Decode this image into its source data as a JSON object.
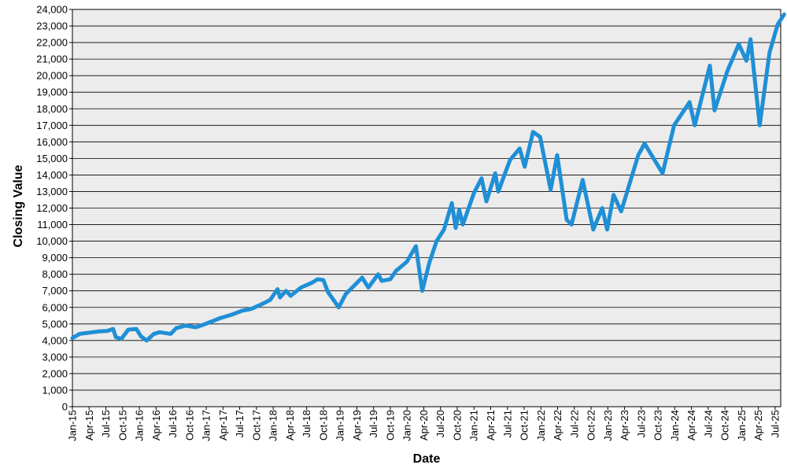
{
  "chart_data": {
    "type": "line",
    "title": "",
    "xlabel": "Date",
    "ylabel": "Closing Value",
    "grid": true,
    "legend": "none",
    "colors": {
      "line": "#1f8fd6",
      "plot_bg": "#ececec",
      "grid": "#000000"
    },
    "ylim": [
      0,
      24000
    ],
    "xlim": [
      "2015-01",
      "2025-08"
    ],
    "y_ticks": [
      {
        "value": 0,
        "label": "0"
      },
      {
        "value": 1000,
        "label": "1,000"
      },
      {
        "value": 2000,
        "label": "2,000"
      },
      {
        "value": 3000,
        "label": "3,000"
      },
      {
        "value": 4000,
        "label": "4,000"
      },
      {
        "value": 5000,
        "label": "5,000"
      },
      {
        "value": 6000,
        "label": "6,000"
      },
      {
        "value": 7000,
        "label": "7,000"
      },
      {
        "value": 8000,
        "label": "8,000"
      },
      {
        "value": 9000,
        "label": "9,000"
      },
      {
        "value": 10000,
        "label": "10,000"
      },
      {
        "value": 11000,
        "label": "11,000"
      },
      {
        "value": 12000,
        "label": "12,000"
      },
      {
        "value": 13000,
        "label": "13,000"
      },
      {
        "value": 14000,
        "label": "14,000"
      },
      {
        "value": 15000,
        "label": "15,000"
      },
      {
        "value": 16000,
        "label": "16,000"
      },
      {
        "value": 17000,
        "label": "17,000"
      },
      {
        "value": 18000,
        "label": "18,000"
      },
      {
        "value": 19000,
        "label": "19,000"
      },
      {
        "value": 20000,
        "label": "20,000"
      },
      {
        "value": 21000,
        "label": "21,000"
      },
      {
        "value": 22000,
        "label": "22,000"
      },
      {
        "value": 23000,
        "label": "23,000"
      },
      {
        "value": 24000,
        "label": "24,000"
      }
    ],
    "x_ticks": [
      {
        "date": "2015-01",
        "label": "Jan-15"
      },
      {
        "date": "2015-04",
        "label": "Apr-15"
      },
      {
        "date": "2015-07",
        "label": "Jul-15"
      },
      {
        "date": "2015-10",
        "label": "Oct-15"
      },
      {
        "date": "2016-01",
        "label": "Jan-16"
      },
      {
        "date": "2016-04",
        "label": "Apr-16"
      },
      {
        "date": "2016-07",
        "label": "Jul-16"
      },
      {
        "date": "2016-10",
        "label": "Oct-16"
      },
      {
        "date": "2017-01",
        "label": "Jan-17"
      },
      {
        "date": "2017-04",
        "label": "Apr-17"
      },
      {
        "date": "2017-07",
        "label": "Jul-17"
      },
      {
        "date": "2017-10",
        "label": "Oct-17"
      },
      {
        "date": "2018-01",
        "label": "Jan-18"
      },
      {
        "date": "2018-04",
        "label": "Apr-18"
      },
      {
        "date": "2018-07",
        "label": "Jul-18"
      },
      {
        "date": "2018-10",
        "label": "Oct-18"
      },
      {
        "date": "2019-01",
        "label": "Jan-19"
      },
      {
        "date": "2019-04",
        "label": "Apr-19"
      },
      {
        "date": "2019-07",
        "label": "Jul-19"
      },
      {
        "date": "2019-10",
        "label": "Oct-19"
      },
      {
        "date": "2020-01",
        "label": "Jan-20"
      },
      {
        "date": "2020-04",
        "label": "Apr-20"
      },
      {
        "date": "2020-07",
        "label": "Jul-20"
      },
      {
        "date": "2020-10",
        "label": "Oct-20"
      },
      {
        "date": "2021-01",
        "label": "Jan-21"
      },
      {
        "date": "2021-04",
        "label": "Apr-21"
      },
      {
        "date": "2021-07",
        "label": "Jul-21"
      },
      {
        "date": "2021-10",
        "label": "Oct-21"
      },
      {
        "date": "2022-01",
        "label": "Jan-22"
      },
      {
        "date": "2022-04",
        "label": "Apr-22"
      },
      {
        "date": "2022-07",
        "label": "Jul-22"
      },
      {
        "date": "2022-10",
        "label": "Oct-22"
      },
      {
        "date": "2023-01",
        "label": "Jan-23"
      },
      {
        "date": "2023-04",
        "label": "Apr-23"
      },
      {
        "date": "2023-07",
        "label": "Jul-23"
      },
      {
        "date": "2023-10",
        "label": "Oct-23"
      },
      {
        "date": "2024-01",
        "label": "Jan-24"
      },
      {
        "date": "2024-04",
        "label": "Apr-24"
      },
      {
        "date": "2024-07",
        "label": "Jul-24"
      },
      {
        "date": "2024-10",
        "label": "Oct-24"
      },
      {
        "date": "2025-01",
        "label": "Jan-25"
      },
      {
        "date": "2025-04",
        "label": "Apr-25"
      },
      {
        "date": "2025-07",
        "label": "Jul-25"
      }
    ],
    "series": [
      {
        "points": [
          [
            "2015-01-01",
            4150
          ],
          [
            "2015-02-10",
            4400
          ],
          [
            "2015-03-15",
            4450
          ],
          [
            "2015-04-20",
            4500
          ],
          [
            "2015-05-25",
            4550
          ],
          [
            "2015-07-10",
            4580
          ],
          [
            "2015-08-10",
            4700
          ],
          [
            "2015-08-25",
            4200
          ],
          [
            "2015-09-25",
            4100
          ],
          [
            "2015-11-01",
            4650
          ],
          [
            "2015-12-15",
            4700
          ],
          [
            "2016-01-10",
            4250
          ],
          [
            "2016-02-10",
            4000
          ],
          [
            "2016-03-20",
            4400
          ],
          [
            "2016-04-20",
            4500
          ],
          [
            "2016-06-20",
            4400
          ],
          [
            "2016-07-20",
            4750
          ],
          [
            "2016-09-10",
            4900
          ],
          [
            "2016-11-05",
            4800
          ],
          [
            "2016-12-15",
            4950
          ],
          [
            "2017-02-01",
            5150
          ],
          [
            "2017-03-15",
            5350
          ],
          [
            "2017-05-15",
            5550
          ],
          [
            "2017-07-15",
            5800
          ],
          [
            "2017-09-01",
            5900
          ],
          [
            "2017-11-01",
            6200
          ],
          [
            "2017-12-15",
            6450
          ],
          [
            "2018-01-25",
            7100
          ],
          [
            "2018-02-08",
            6600
          ],
          [
            "2018-03-10",
            7000
          ],
          [
            "2018-04-05",
            6700
          ],
          [
            "2018-06-01",
            7200
          ],
          [
            "2018-08-01",
            7500
          ],
          [
            "2018-08-30",
            7700
          ],
          [
            "2018-10-01",
            7650
          ],
          [
            "2018-10-25",
            6950
          ],
          [
            "2018-12-24",
            6000
          ],
          [
            "2019-02-01",
            6800
          ],
          [
            "2019-04-30",
            7800
          ],
          [
            "2019-06-03",
            7200
          ],
          [
            "2019-07-26",
            8000
          ],
          [
            "2019-08-15",
            7600
          ],
          [
            "2019-10-01",
            7700
          ],
          [
            "2019-11-01",
            8200
          ],
          [
            "2019-12-30",
            8750
          ],
          [
            "2020-02-19",
            9700
          ],
          [
            "2020-03-23",
            7000
          ],
          [
            "2020-05-01",
            8700
          ],
          [
            "2020-06-10",
            10000
          ],
          [
            "2020-07-20",
            10700
          ],
          [
            "2020-09-02",
            12300
          ],
          [
            "2020-09-23",
            10800
          ],
          [
            "2020-10-12",
            11900
          ],
          [
            "2020-11-01",
            11000
          ],
          [
            "2020-12-31",
            12900
          ],
          [
            "2021-02-12",
            13800
          ],
          [
            "2021-03-08",
            12400
          ],
          [
            "2021-04-26",
            14100
          ],
          [
            "2021-05-12",
            13000
          ],
          [
            "2021-07-15",
            14900
          ],
          [
            "2021-09-07",
            15600
          ],
          [
            "2021-10-04",
            14500
          ],
          [
            "2021-11-19",
            16600
          ],
          [
            "2021-12-27",
            16300
          ],
          [
            "2022-02-24",
            13100
          ],
          [
            "2022-03-29",
            15200
          ],
          [
            "2022-05-20",
            11300
          ],
          [
            "2022-06-16",
            11000
          ],
          [
            "2022-08-16",
            13700
          ],
          [
            "2022-10-13",
            10700
          ],
          [
            "2022-12-01",
            12000
          ],
          [
            "2022-12-28",
            10700
          ],
          [
            "2023-02-02",
            12800
          ],
          [
            "2023-03-13",
            11800
          ],
          [
            "2023-06-15",
            15200
          ],
          [
            "2023-07-19",
            15900
          ],
          [
            "2023-10-26",
            14100
          ],
          [
            "2023-12-28",
            17000
          ],
          [
            "2024-03-21",
            18400
          ],
          [
            "2024-04-19",
            17000
          ],
          [
            "2024-07-10",
            20600
          ],
          [
            "2024-08-05",
            17900
          ],
          [
            "2024-10-15",
            20300
          ],
          [
            "2024-12-16",
            21900
          ],
          [
            "2025-01-27",
            20900
          ],
          [
            "2025-02-19",
            22200
          ],
          [
            "2025-04-08",
            17000
          ],
          [
            "2025-06-01",
            21400
          ],
          [
            "2025-07-15",
            23100
          ],
          [
            "2025-08-20",
            23700
          ]
        ]
      }
    ]
  }
}
